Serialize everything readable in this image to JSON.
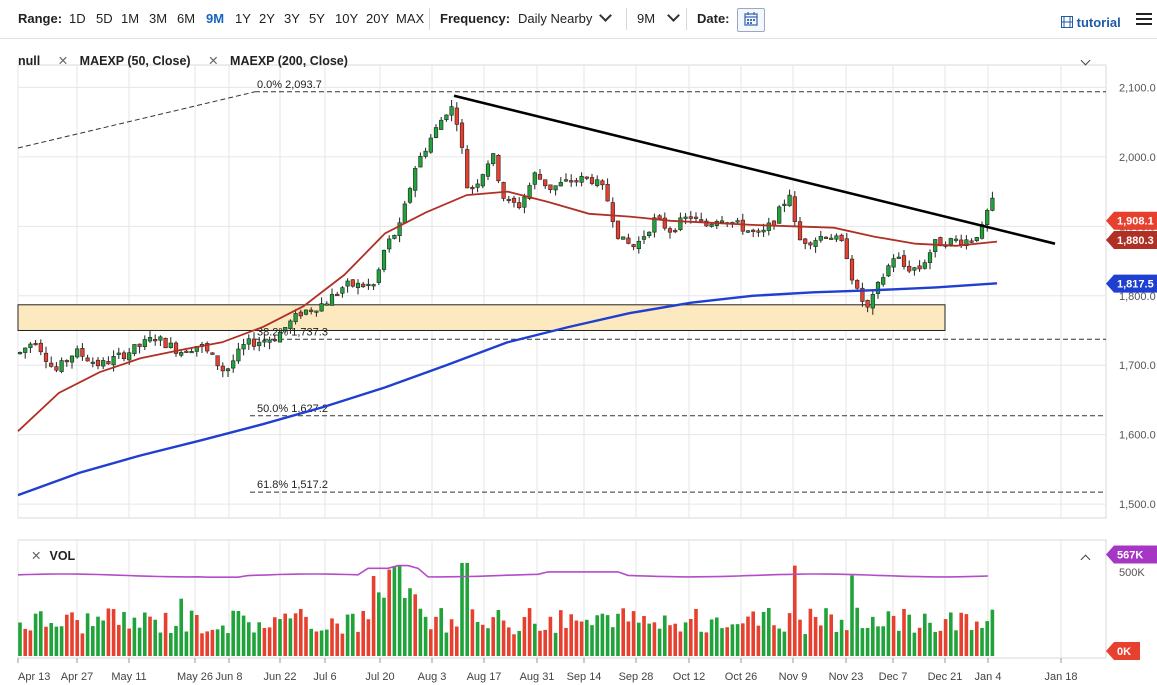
{
  "toolbar": {
    "range_label": "Range:",
    "ranges": [
      "1D",
      "5D",
      "1M",
      "3M",
      "6M",
      "9M",
      "1Y",
      "2Y",
      "3Y",
      "5Y",
      "10Y",
      "20Y",
      "MAX"
    ],
    "active_range": "9M",
    "frequency_label": "Frequency:",
    "frequency_value": "Daily Nearby",
    "period_value": "9M",
    "date_label": "Date:",
    "tutorial_label": "tutorial"
  },
  "legend": {
    "items": [
      "null",
      "MAEXP (50, Close)",
      "MAEXP (200, Close)"
    ]
  },
  "colors": {
    "up": "#1fa33a",
    "down": "#e8402f",
    "ma50": "#b03025",
    "ma200": "#1f3fd0",
    "trend": "#000000",
    "zone_fill": "#fde9c0",
    "vol_line": "#b44cc8",
    "vol_tag": "#a637c4"
  },
  "chart_data": {
    "type": "candlestick",
    "ylim": [
      1480,
      2115
    ],
    "y_ticks": [
      1500,
      1600,
      1700,
      1800,
      1900,
      2000,
      2100
    ],
    "y_tick_labels": [
      "1,500.0",
      "1,600.0",
      "1,700.0",
      "1,800.0",
      "1,900.0",
      "2,000.0",
      "2,100.0"
    ],
    "x_labels": [
      "Apr 13",
      "Apr 27",
      "May 11",
      "May 26",
      "Jun 8",
      "Jun 22",
      "Jul 6",
      "Jul 20",
      "Aug 3",
      "Aug 17",
      "Aug 31",
      "Sep 14",
      "Sep 28",
      "Oct 12",
      "Oct 26",
      "Nov 9",
      "Nov 23",
      "Dec 7",
      "Dec 21",
      "Jan 4",
      "Jan 18"
    ],
    "fib_levels": [
      {
        "label": "0.0% 2,093.7",
        "value": 2093.7
      },
      {
        "label": "38.2% 1,737.3",
        "value": 1737.3
      },
      {
        "label": "50.0% 1,627.2",
        "value": 1627.2
      },
      {
        "label": "61.8% 1,517.2",
        "value": 1517.2
      }
    ],
    "support_zone": [
      1750,
      1787
    ],
    "trendline": {
      "start": [
        "Aug 6",
        2088
      ],
      "end": [
        "Jan 14",
        1875
      ]
    },
    "price_tags": [
      {
        "label": "1,908.1",
        "value": 1908.1,
        "color": "#e8402f"
      },
      {
        "label": "1,880.3",
        "value": 1880.3,
        "color": "#b03025"
      },
      {
        "label": "1,817.5",
        "value": 1817.5,
        "color": "#1f3fd0"
      }
    ],
    "series": [
      {
        "name": "MAEXP (50, Close)",
        "values": [
          1605,
          1660,
          1690,
          1710,
          1722,
          1733,
          1755,
          1785,
          1830,
          1890,
          1920,
          1945,
          1950,
          1935,
          1918,
          1914,
          1908,
          1905,
          1902,
          1900,
          1898,
          1885,
          1875,
          1872,
          1878
        ]
      },
      {
        "name": "MAEXP (200, Close)",
        "values": [
          1513,
          1545,
          1570,
          1592,
          1615,
          1640,
          1668,
          1700,
          1733,
          1755,
          1775,
          1790,
          1800,
          1805,
          1808,
          1812,
          1818
        ]
      }
    ],
    "volume": {
      "label": "VOL",
      "ylim": [
        0,
        620
      ],
      "tags": [
        {
          "label": "567K",
          "value": 567
        },
        {
          "label": "0K",
          "value": 0
        }
      ],
      "avg_tick_label": "500K"
    }
  }
}
